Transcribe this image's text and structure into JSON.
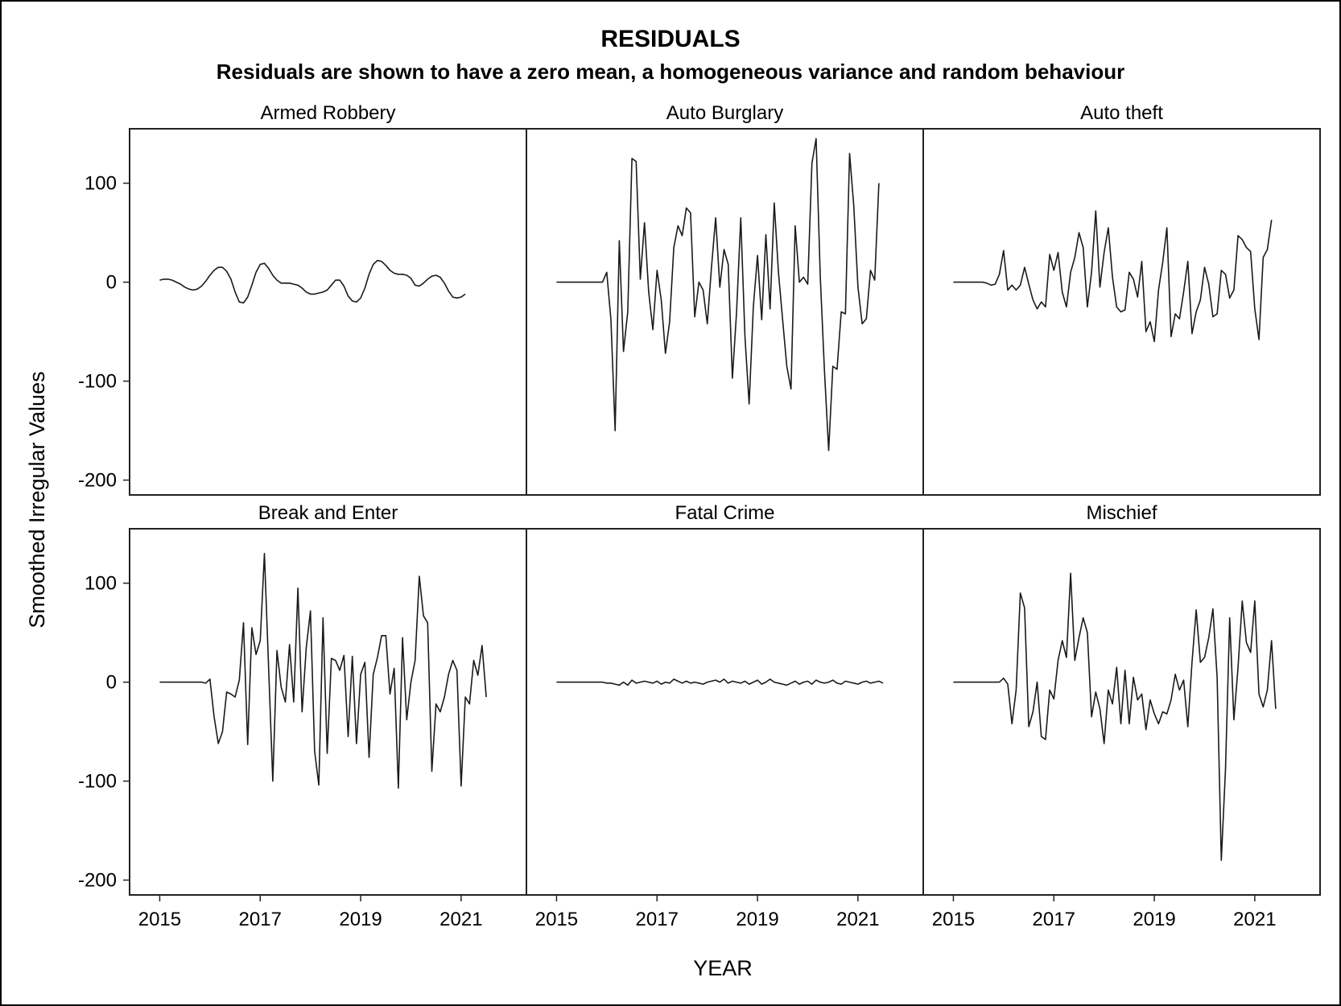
{
  "chart_data": {
    "type": "line",
    "title": "RESIDUALS",
    "subtitle": "Residuals are shown to have a zero mean, a homogeneous variance and random behaviour",
    "xlabel": "YEAR",
    "ylabel": "Smoothed Irregular Values",
    "xlim": [
      2014.4,
      2022.3
    ],
    "ylim": [
      -215,
      155
    ],
    "x_ticks": [
      2015,
      2017,
      2019,
      2021
    ],
    "y_ticks": [
      100,
      0,
      -100,
      -200
    ],
    "x_start": 2015.0,
    "x_step": 0.0833333,
    "grid": false,
    "line_color": "#1a1a1a",
    "panels": [
      {
        "title": "Armed Robbery",
        "values": [
          2,
          3,
          3,
          2,
          0,
          -2,
          -5,
          -7,
          -8,
          -7,
          -4,
          1,
          7,
          12,
          15,
          15,
          11,
          3,
          -10,
          -20,
          -21,
          -15,
          -3,
          10,
          18,
          19,
          14,
          7,
          2,
          -1,
          -1,
          -1,
          -2,
          -3,
          -6,
          -10,
          -12,
          -12,
          -11,
          -10,
          -8,
          -3,
          2,
          2,
          -4,
          -14,
          -19,
          -20,
          -16,
          -6,
          8,
          18,
          22,
          21,
          17,
          12,
          9,
          8,
          8,
          7,
          4,
          -3,
          -4,
          -1,
          3,
          6,
          7,
          5,
          -1,
          -9,
          -15,
          -16,
          -15,
          -12
        ]
      },
      {
        "title": "Auto Burglary",
        "values": [
          0,
          0,
          0,
          0,
          0,
          0,
          0,
          0,
          0,
          0,
          0,
          0,
          10,
          -38,
          -150,
          42,
          -70,
          -30,
          125,
          122,
          3,
          60,
          -10,
          -48,
          12,
          -18,
          -72,
          -40,
          35,
          57,
          47,
          75,
          70,
          -35,
          0,
          -8,
          -42,
          15,
          65,
          -5,
          33,
          18,
          -97,
          -30,
          65,
          -55,
          -123,
          -25,
          27,
          -38,
          48,
          -27,
          80,
          10,
          -38,
          -85,
          -108,
          57,
          0,
          5,
          -2,
          120,
          145,
          5,
          -90,
          -170,
          -85,
          -88,
          -30,
          -32,
          130,
          77,
          -5,
          -42,
          -37,
          12,
          2,
          100
        ]
      },
      {
        "title": "Auto theft",
        "values": [
          0,
          0,
          0,
          0,
          0,
          0,
          0,
          0,
          -1,
          -3,
          -2,
          8,
          32,
          -8,
          -3,
          -8,
          -3,
          15,
          -2,
          -18,
          -27,
          -20,
          -25,
          28,
          12,
          30,
          -10,
          -25,
          10,
          25,
          50,
          35,
          -25,
          10,
          72,
          -5,
          30,
          55,
          5,
          -25,
          -30,
          -28,
          10,
          3,
          -15,
          21,
          -50,
          -40,
          -60,
          -8,
          20,
          55,
          -55,
          -32,
          -37,
          -10,
          21,
          -52,
          -30,
          -18,
          15,
          -2,
          -35,
          -32,
          12,
          8,
          -16,
          -8,
          47,
          43,
          35,
          31,
          -27,
          -58,
          25,
          33,
          63
        ]
      },
      {
        "title": "Break and Enter",
        "values": [
          0,
          0,
          0,
          0,
          0,
          0,
          0,
          0,
          0,
          0,
          0,
          -1,
          3,
          -35,
          -62,
          -50,
          -10,
          -12,
          -15,
          2,
          60,
          -63,
          55,
          28,
          42,
          130,
          15,
          -100,
          32,
          -5,
          -20,
          38,
          -20,
          95,
          -30,
          35,
          72,
          -70,
          -104,
          65,
          -72,
          24,
          22,
          12,
          27,
          -55,
          26,
          -62,
          8,
          20,
          -76,
          8,
          25,
          47,
          47,
          -12,
          14,
          -107,
          45,
          -38,
          0,
          22,
          107,
          67,
          60,
          -90,
          -22,
          -30,
          -15,
          8,
          22,
          12,
          -105,
          -15,
          -22,
          22,
          7,
          37,
          -15
        ]
      },
      {
        "title": "Fatal Crime",
        "values": [
          0,
          0,
          0,
          0,
          0,
          0,
          0,
          0,
          0,
          0,
          0,
          0,
          -1,
          -1,
          -2,
          -3,
          0,
          -3,
          2,
          -1,
          0,
          1,
          0,
          -1,
          1,
          -2,
          0,
          -1,
          3,
          1,
          -1,
          1,
          -1,
          0,
          -1,
          -2,
          0,
          1,
          2,
          0,
          3,
          -1,
          1,
          0,
          -1,
          1,
          -2,
          0,
          2,
          -2,
          0,
          3,
          0,
          -1,
          -2,
          -3,
          -1,
          1,
          -2,
          0,
          1,
          -2,
          2,
          0,
          -1,
          0,
          2,
          -1,
          -2,
          1,
          0,
          -1,
          -2,
          0,
          1,
          -1,
          0,
          1,
          -1
        ]
      },
      {
        "title": "Mischief",
        "values": [
          0,
          0,
          0,
          0,
          0,
          0,
          0,
          0,
          0,
          0,
          0,
          0,
          4,
          -2,
          -42,
          -8,
          90,
          75,
          -45,
          -30,
          0,
          -55,
          -58,
          -8,
          -17,
          22,
          42,
          25,
          110,
          22,
          45,
          65,
          50,
          -35,
          -10,
          -27,
          -62,
          -8,
          -22,
          15,
          -42,
          12,
          -42,
          5,
          -18,
          -12,
          -48,
          -18,
          -32,
          -42,
          -30,
          -32,
          -18,
          8,
          -8,
          2,
          -45,
          20,
          73,
          20,
          25,
          45,
          74,
          5,
          -180,
          -88,
          65,
          -38,
          15,
          82,
          40,
          30,
          82,
          -12,
          -25,
          -8,
          42,
          -27
        ]
      }
    ]
  }
}
